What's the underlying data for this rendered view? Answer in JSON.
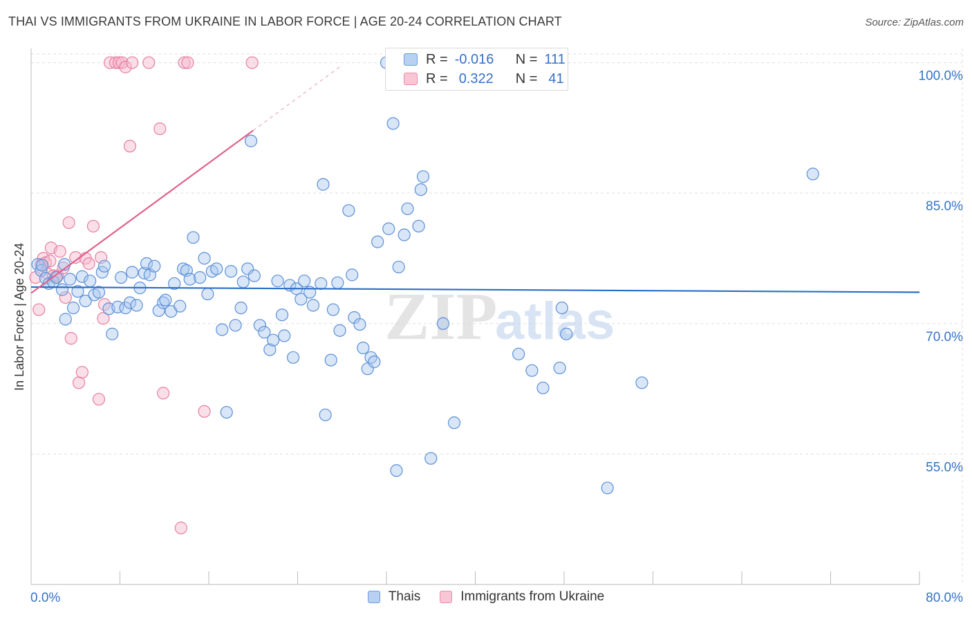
{
  "header": {
    "title": "THAI VS IMMIGRANTS FROM UKRAINE IN LABOR FORCE | AGE 20-24 CORRELATION CHART",
    "source": "Source: ZipAtlas.com"
  },
  "legend": {
    "rows": [
      {
        "r_label": "R =",
        "r_value": "-0.016",
        "n_label": "N =",
        "n_value": "111"
      },
      {
        "r_label": "R =",
        "r_value": "0.322",
        "n_label": "N =",
        "n_value": "41"
      }
    ]
  },
  "colors": {
    "thai_fill": "#a9c8f0",
    "thai_stroke": "#5b8fd6",
    "thai_line": "#2a6ec6",
    "ukr_fill": "#f6b8cc",
    "ukr_stroke": "#e67ea0",
    "ukr_line": "#e0608a",
    "tick_label": "#3572c6",
    "grid": "#dddddd"
  },
  "watermark": {
    "zip": "ZIP",
    "atlas": "atlas"
  },
  "chart_data": {
    "type": "scatter",
    "title": "THAI VS IMMIGRANTS FROM UKRAINE IN LABOR FORCE | AGE 20-24 CORRELATION CHART",
    "xlabel": "",
    "ylabel": "In Labor Force | Age 20-24",
    "xlim": [
      0,
      80
    ],
    "ylim": [
      40,
      101
    ],
    "x_tick_labels": [
      {
        "value": 0,
        "label": "0.0%"
      },
      {
        "value": 80,
        "label": "80.0%"
      }
    ],
    "y_tick_labels": [
      {
        "value": 100,
        "label": "100.0%"
      },
      {
        "value": 85,
        "label": "85.0%"
      },
      {
        "value": 70,
        "label": "70.0%"
      },
      {
        "value": 55,
        "label": "55.0%"
      }
    ],
    "grid": true,
    "series": [
      {
        "name": "Thais",
        "r": -0.016,
        "n": 111,
        "trend": {
          "x": [
            0,
            80
          ],
          "y": [
            74.2,
            73.6
          ]
        },
        "points": [
          [
            0.6,
            76.8
          ],
          [
            0.9,
            76.1
          ],
          [
            1.3,
            75.2
          ],
          [
            1.6,
            74.6
          ],
          [
            2.0,
            74.8
          ],
          [
            2.3,
            75.3
          ],
          [
            2.8,
            73.9
          ],
          [
            3.1,
            70.5
          ],
          [
            3.5,
            75.1
          ],
          [
            3.8,
            71.8
          ],
          [
            4.2,
            73.7
          ],
          [
            4.6,
            75.4
          ],
          [
            4.9,
            72.6
          ],
          [
            5.3,
            74.9
          ],
          [
            5.7,
            73.3
          ],
          [
            6.1,
            73.6
          ],
          [
            6.4,
            75.9
          ],
          [
            6.6,
            76.6
          ],
          [
            7.0,
            71.7
          ],
          [
            7.3,
            68.8
          ],
          [
            7.8,
            71.9
          ],
          [
            8.1,
            75.3
          ],
          [
            8.5,
            71.8
          ],
          [
            8.9,
            72.4
          ],
          [
            9.1,
            75.9
          ],
          [
            9.5,
            72.1
          ],
          [
            9.8,
            74.1
          ],
          [
            10.2,
            75.8
          ],
          [
            10.4,
            76.9
          ],
          [
            10.7,
            75.6
          ],
          [
            11.1,
            76.6
          ],
          [
            11.5,
            71.5
          ],
          [
            11.9,
            72.4
          ],
          [
            12.1,
            72.7
          ],
          [
            12.6,
            71.4
          ],
          [
            12.9,
            74.6
          ],
          [
            13.4,
            72.0
          ],
          [
            13.7,
            76.3
          ],
          [
            14.0,
            76.1
          ],
          [
            14.3,
            75.1
          ],
          [
            14.6,
            79.9
          ],
          [
            15.2,
            75.3
          ],
          [
            15.6,
            77.5
          ],
          [
            15.9,
            73.4
          ],
          [
            16.3,
            76.0
          ],
          [
            16.7,
            76.3
          ],
          [
            17.2,
            69.3
          ],
          [
            17.6,
            59.8
          ],
          [
            18.0,
            76.0
          ],
          [
            18.4,
            69.8
          ],
          [
            18.9,
            71.8
          ],
          [
            19.1,
            74.8
          ],
          [
            19.5,
            76.3
          ],
          [
            19.8,
            91.0
          ],
          [
            20.1,
            75.5
          ],
          [
            20.6,
            69.8
          ],
          [
            21.0,
            69.0
          ],
          [
            21.5,
            67.0
          ],
          [
            21.8,
            68.1
          ],
          [
            22.2,
            74.9
          ],
          [
            22.6,
            71.0
          ],
          [
            22.8,
            68.6
          ],
          [
            23.3,
            74.4
          ],
          [
            23.6,
            66.1
          ],
          [
            23.9,
            74.0
          ],
          [
            24.3,
            72.8
          ],
          [
            24.6,
            74.9
          ],
          [
            25.1,
            73.6
          ],
          [
            25.4,
            72.1
          ],
          [
            26.1,
            74.6
          ],
          [
            26.5,
            59.5
          ],
          [
            26.3,
            86.0
          ],
          [
            27.0,
            65.8
          ],
          [
            27.2,
            71.6
          ],
          [
            27.8,
            69.2
          ],
          [
            27.6,
            74.7
          ],
          [
            28.6,
            83.0
          ],
          [
            28.9,
            75.6
          ],
          [
            29.1,
            70.7
          ],
          [
            29.6,
            69.9
          ],
          [
            29.9,
            67.2
          ],
          [
            30.3,
            64.8
          ],
          [
            30.6,
            66.1
          ],
          [
            30.9,
            65.6
          ],
          [
            31.2,
            79.4
          ],
          [
            32.2,
            80.9
          ],
          [
            32.6,
            93.0
          ],
          [
            32.9,
            53.1
          ],
          [
            33.1,
            76.5
          ],
          [
            33.6,
            80.2
          ],
          [
            33.9,
            83.2
          ],
          [
            34.9,
            81.2
          ],
          [
            35.1,
            85.4
          ],
          [
            35.3,
            86.9
          ],
          [
            36.0,
            54.5
          ],
          [
            37.1,
            70.0
          ],
          [
            38.1,
            58.6
          ],
          [
            43.9,
            66.5
          ],
          [
            45.1,
            64.6
          ],
          [
            46.1,
            62.6
          ],
          [
            47.6,
            64.9
          ],
          [
            47.8,
            71.8
          ],
          [
            48.2,
            68.8
          ],
          [
            51.9,
            51.1
          ],
          [
            55.0,
            63.2
          ],
          [
            70.4,
            87.2
          ],
          [
            32.0,
            100
          ],
          [
            38.5,
            100
          ],
          [
            41.0,
            100
          ],
          [
            3.0,
            76.8
          ],
          [
            1.0,
            76.7
          ]
        ]
      },
      {
        "name": "Immigrants from Ukraine",
        "r": 0.322,
        "n": 41,
        "trend": {
          "x": [
            0,
            20
          ],
          "y": [
            73.5,
            92.2
          ]
        },
        "trend_dashed": {
          "x": [
            20,
            28
          ],
          "y": [
            92.2,
            99.7
          ]
        },
        "points": [
          [
            0.4,
            75.3
          ],
          [
            0.7,
            71.6
          ],
          [
            0.9,
            76.8
          ],
          [
            1.1,
            77.5
          ],
          [
            1.3,
            77.0
          ],
          [
            1.5,
            75.7
          ],
          [
            1.7,
            77.2
          ],
          [
            1.8,
            78.7
          ],
          [
            2.0,
            75.5
          ],
          [
            2.2,
            75.3
          ],
          [
            2.4,
            75.5
          ],
          [
            2.6,
            78.3
          ],
          [
            2.9,
            76.4
          ],
          [
            3.1,
            73.0
          ],
          [
            3.4,
            81.6
          ],
          [
            3.6,
            68.3
          ],
          [
            4.0,
            77.6
          ],
          [
            4.3,
            63.2
          ],
          [
            4.6,
            64.4
          ],
          [
            4.9,
            77.5
          ],
          [
            5.2,
            76.9
          ],
          [
            5.6,
            81.2
          ],
          [
            6.1,
            61.3
          ],
          [
            6.3,
            77.6
          ],
          [
            6.6,
            72.2
          ],
          [
            6.5,
            70.6
          ],
          [
            7.1,
            100
          ],
          [
            7.6,
            100
          ],
          [
            7.9,
            100
          ],
          [
            8.2,
            100
          ],
          [
            8.5,
            99.5
          ],
          [
            8.9,
            90.4
          ],
          [
            9.1,
            100
          ],
          [
            10.6,
            100
          ],
          [
            11.6,
            92.4
          ],
          [
            11.9,
            62.0
          ],
          [
            13.5,
            46.5
          ],
          [
            13.8,
            100
          ],
          [
            14.1,
            100
          ],
          [
            15.6,
            59.9
          ],
          [
            19.9,
            100
          ]
        ]
      }
    ]
  }
}
